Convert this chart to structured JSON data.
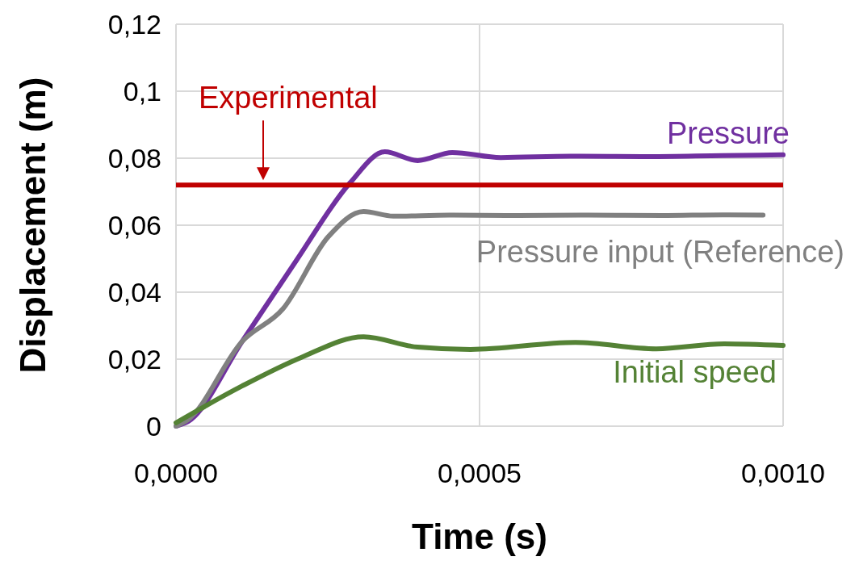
{
  "chart_data": {
    "type": "line",
    "xlabel": "Time (s)",
    "ylabel": "Displacement (m)",
    "xlim": [
      0,
      0.001
    ],
    "ylim": [
      0,
      0.12
    ],
    "xticks": [
      {
        "value": 0,
        "label": "0,0000"
      },
      {
        "value": 0.0005,
        "label": "0,0005"
      },
      {
        "value": 0.001,
        "label": "0,0010"
      }
    ],
    "yticks": [
      0,
      {
        "value": 0.02,
        "label": "0,02"
      },
      {
        "value": 0.04,
        "label": "0,04"
      },
      {
        "value": 0.06,
        "label": "0,06"
      },
      {
        "value": 0.08,
        "label": "0,08"
      },
      {
        "value": 0.1,
        "label": "0,1"
      },
      {
        "value": 0.12,
        "label": "0,12"
      }
    ],
    "grid": true,
    "marker": "none",
    "line_style": "solid",
    "series": [
      {
        "name": "Pressure",
        "color": "#7030a0",
        "x": [
          0,
          2e-05,
          0.000109,
          0.000198,
          0.000286,
          0.000344,
          0.000398,
          0.000455,
          0.000535,
          0.00065,
          0.00078,
          0.0009,
          0.001
        ],
        "values": [
          0,
          0.0014,
          0.0253,
          0.0494,
          0.0725,
          0.0819,
          0.0793,
          0.0817,
          0.0802,
          0.0806,
          0.0805,
          0.0808,
          0.081
        ]
      },
      {
        "name": "Pressure input (Reference)",
        "color": "#808080",
        "x": [
          0,
          2e-05,
          0.000109,
          0.000176,
          0.000251,
          0.000309,
          0.000358,
          0.00045,
          0.00055,
          0.00068,
          0.0008,
          0.0009,
          0.000967
        ],
        "values": [
          0,
          0.002,
          0.0253,
          0.035,
          0.0566,
          0.0641,
          0.0627,
          0.063,
          0.0629,
          0.063,
          0.0629,
          0.0631,
          0.063
        ]
      },
      {
        "name": "Initial speed",
        "color": "#548235",
        "x": [
          0,
          0.000109,
          0.000206,
          0.000309,
          0.000398,
          0.000485,
          0.000658,
          0.000791,
          0.000903,
          0.001
        ],
        "values": [
          0.001,
          0.012,
          0.0205,
          0.0267,
          0.0236,
          0.0229,
          0.025,
          0.0231,
          0.0246,
          0.0241
        ]
      }
    ],
    "ref_lines": [
      {
        "axis": "y",
        "value": 0.072,
        "label": "Experimental",
        "color": "#c00000",
        "line_style": "solid"
      }
    ]
  }
}
